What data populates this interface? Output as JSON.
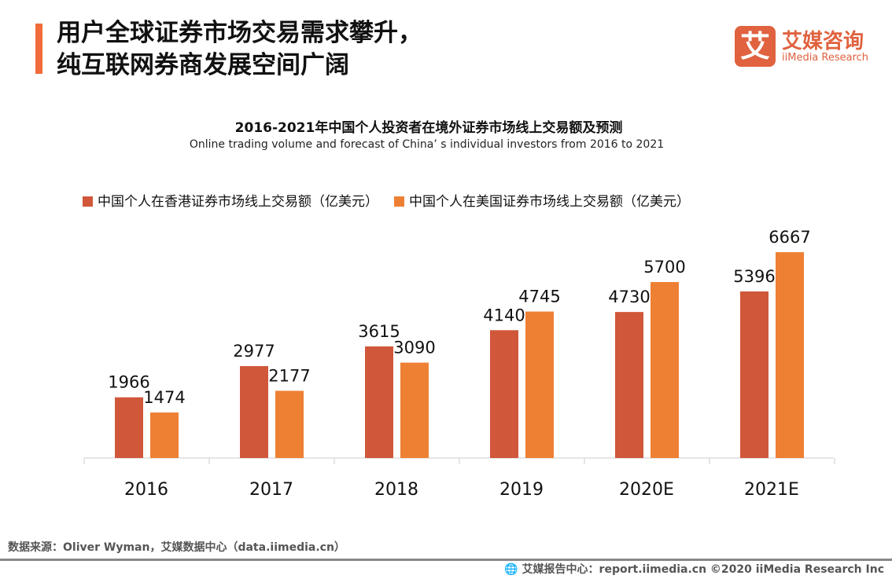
{
  "header": {
    "title_line1": "用户全球证券市场交易需求攀升，",
    "title_line2": "纯互联网券商发展空间广阔"
  },
  "logo": {
    "mark": "艾",
    "name_cn": "艾媒咨询",
    "name_en": "iiMedia Research"
  },
  "colors": {
    "accent": "#F26B3A",
    "hk": "#D0573A",
    "us": "#EE8034"
  },
  "chart_data": {
    "type": "bar",
    "title": "2016-2021年中国个人投资者在境外证券市场线上交易额及预测",
    "subtitle": "Online trading volume and forecast of  China’  s individual investors from 2016 to 2021",
    "categories": [
      "2016",
      "2017",
      "2018",
      "2019",
      "2020E",
      "2021E"
    ],
    "series": [
      {
        "name": "中国个人在香港证券市场线上交易额（亿美元）",
        "values": [
          1966,
          2977,
          3615,
          4140,
          4730,
          5396
        ]
      },
      {
        "name": "中国个人在美国证券市场线上交易额（亿美元）",
        "values": [
          1474,
          2177,
          3090,
          4745,
          5700,
          6667
        ]
      }
    ],
    "ylim": [
      0,
      7000
    ],
    "grid": false,
    "legend": "top-left",
    "data_labels": true
  },
  "footer": {
    "source": "数据来源：Oliver Wyman，艾媒数据中心（data.iimedia.cn）",
    "credit": "艾媒报告中心：report.iimedia.cn   ©2020  iiMedia Research  Inc"
  }
}
